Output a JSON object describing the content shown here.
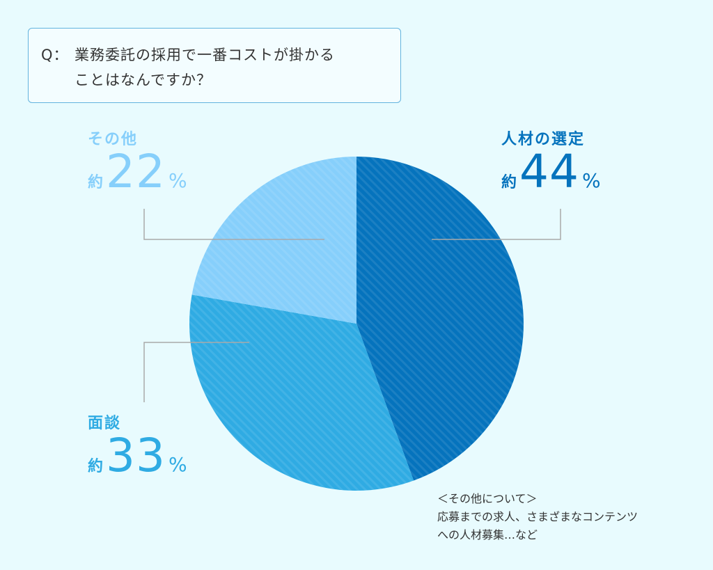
{
  "question": {
    "prefix": "Q：",
    "line1": "業務委託の採用で一番コストが掛かる",
    "line2": "ことはなんですか？"
  },
  "chart_data": {
    "type": "pie",
    "slices": [
      {
        "label": "人材の選定",
        "prefix": "約",
        "value": 44,
        "display": "44",
        "unit": "%",
        "color": "#0573bd"
      },
      {
        "label": "面談",
        "prefix": "約",
        "value": 33,
        "display": "33",
        "unit": "%",
        "color": "#2fabe3"
      },
      {
        "label": "その他",
        "prefix": "約",
        "value": 22,
        "display": "22",
        "unit": "%",
        "color": "#86cffb"
      }
    ],
    "start": "top, clockwise"
  },
  "note": {
    "title": "＜その他について＞",
    "line1": "応募までの求人、さまざまなコンテンツ",
    "line2": "への人材募集…など"
  },
  "colors": {
    "background": "#e8fbfe",
    "box_border": "#62b3de",
    "leader_line": "#a9a9a9"
  }
}
